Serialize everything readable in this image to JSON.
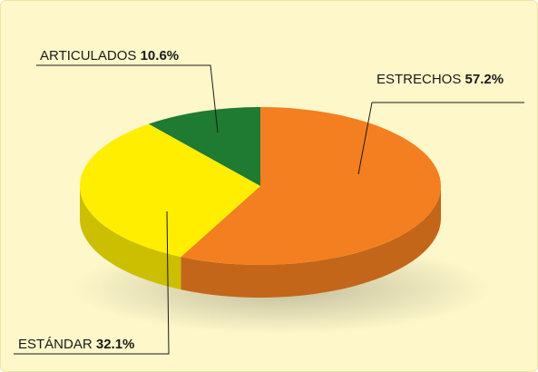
{
  "chart_data": {
    "type": "pie",
    "categories": [
      "ESTRECHOS",
      "ESTÁNDAR",
      "ARTICULADOS"
    ],
    "values": [
      57.2,
      32.1,
      10.6
    ],
    "value_labels": [
      "57.2%",
      "32.1%",
      "10.6%"
    ],
    "colors": [
      "#f47f20",
      "#ffee00",
      "#1f7a32"
    ]
  }
}
